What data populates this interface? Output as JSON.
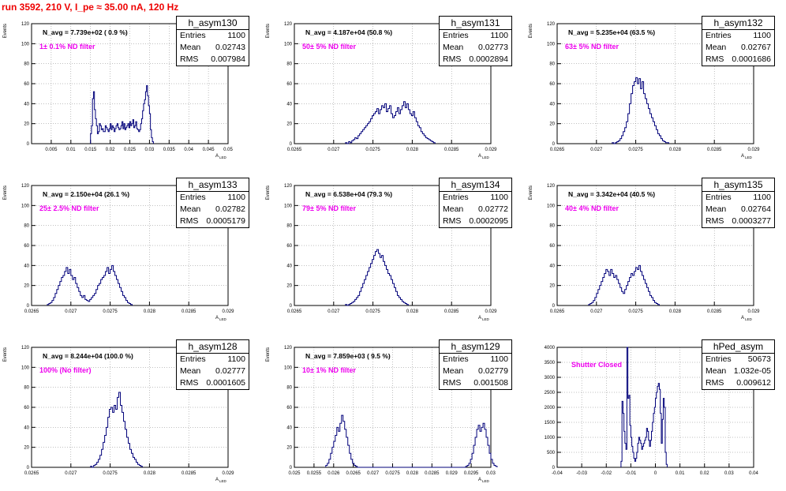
{
  "header": {
    "run_label": "run 3592,   210 V, I_pe ≈ 35.00 nA, 120 Hz"
  },
  "colors": {
    "histogram": "#00007a",
    "title": "#ee0000",
    "filter_text": "#ee00ee",
    "grid": "#808080"
  },
  "chart_data": [
    {
      "type": "histogram",
      "name": "h_asym130",
      "stats": {
        "entries": "1100",
        "mean": "0.02743",
        "rms": "0.007984"
      },
      "labels": {
        "entries": "Entries",
        "mean": "Mean",
        "rms": "RMS"
      },
      "n_avg": "N_avg = 7.739e+02 ( 0.9 %)",
      "filter_text": "1± 0.1% ND filter",
      "ylabel": "Events",
      "xlabel": "A",
      "xlim": [
        0.0,
        0.05
      ],
      "ylim": [
        0,
        120
      ],
      "xticks": [
        "0.005",
        "0.01",
        "0.015",
        "0.02",
        "0.025",
        "0.03",
        "0.035",
        "0.04",
        "0.045",
        "0.05"
      ],
      "yticks": [
        "0",
        "20",
        "40",
        "60",
        "80",
        "100",
        "120"
      ],
      "x_start": 0.015,
      "bin_width": 0.00025,
      "values": [
        10,
        18,
        45,
        52,
        34,
        25,
        18,
        10,
        12,
        20,
        18,
        14,
        15,
        12,
        12,
        18,
        16,
        14,
        12,
        15,
        20,
        14,
        18,
        16,
        12,
        15,
        18,
        20,
        16,
        14,
        15,
        18,
        22,
        15,
        20,
        14,
        16,
        18,
        20,
        16,
        22,
        18,
        20,
        24,
        16,
        18,
        22,
        15,
        14,
        12,
        14,
        20,
        25,
        33,
        40,
        44,
        52,
        58,
        48,
        38,
        30,
        14,
        6,
        2
      ]
    },
    {
      "type": "histogram",
      "name": "h_asym131",
      "stats": {
        "entries": "1100",
        "mean": "0.02773",
        "rms": "0.0002894"
      },
      "labels": {
        "entries": "Entries",
        "mean": "Mean",
        "rms": "RMS"
      },
      "n_avg": "N_avg = 4.187e+04 (50.8 %)",
      "filter_text": "50± 5% ND filter",
      "ylabel": "Events",
      "xlabel": "A",
      "xlim": [
        0.0265,
        0.029
      ],
      "ylim": [
        0,
        120
      ],
      "xticks": [
        "0.0265",
        "0.027",
        "0.0275",
        "0.028",
        "0.0285",
        "0.029"
      ],
      "yticks": [
        "0",
        "20",
        "40",
        "60",
        "80",
        "100",
        "120"
      ],
      "x_start": 0.02715,
      "bin_width": 2e-05,
      "values": [
        1,
        0,
        2,
        1,
        3,
        4,
        6,
        5,
        8,
        10,
        12,
        14,
        16,
        18,
        20,
        22,
        25,
        28,
        30,
        32,
        35,
        30,
        34,
        38,
        36,
        40,
        32,
        35,
        38,
        30,
        26,
        28,
        32,
        36,
        30,
        34,
        38,
        42,
        36,
        40,
        34,
        30,
        28,
        32,
        26,
        22,
        18,
        16,
        12,
        10,
        8,
        6,
        5,
        4,
        3,
        2,
        1
      ]
    },
    {
      "type": "histogram",
      "name": "h_asym132",
      "stats": {
        "entries": "1100",
        "mean": "0.02767",
        "rms": "0.0001686"
      },
      "labels": {
        "entries": "Entries",
        "mean": "Mean",
        "rms": "RMS"
      },
      "n_avg": "N_avg = 5.235e+04 (63.5 %)",
      "filter_text": "63± 5% ND filter",
      "ylabel": "Events",
      "xlabel": "A",
      "xlim": [
        0.0265,
        0.029
      ],
      "ylim": [
        0,
        120
      ],
      "xticks": [
        "0.0265",
        "0.027",
        "0.0275",
        "0.028",
        "0.0285",
        "0.029"
      ],
      "yticks": [
        "0",
        "20",
        "40",
        "60",
        "80",
        "100",
        "120"
      ],
      "x_start": 0.0272,
      "bin_width": 2e-05,
      "values": [
        1,
        0,
        1,
        2,
        3,
        5,
        8,
        12,
        16,
        22,
        30,
        40,
        50,
        58,
        62,
        66,
        60,
        65,
        55,
        62,
        50,
        45,
        40,
        35,
        30,
        26,
        22,
        18,
        14,
        10,
        8,
        5,
        3,
        2,
        1,
        1
      ]
    },
    {
      "type": "histogram",
      "name": "h_asym133",
      "stats": {
        "entries": "1100",
        "mean": "0.02782",
        "rms": "0.0005179"
      },
      "labels": {
        "entries": "Entries",
        "mean": "Mean",
        "rms": "RMS"
      },
      "n_avg": "N_avg = 2.150e+04 (26.1 %)",
      "filter_text": "25± 2.5% ND filter",
      "ylabel": "Events",
      "xlabel": "A",
      "xlim": [
        0.0265,
        0.029
      ],
      "ylim": [
        0,
        120
      ],
      "xticks": [
        "0.0265",
        "0.027",
        "0.0275",
        "0.028",
        "0.0285",
        "0.029"
      ],
      "yticks": [
        "0",
        "20",
        "40",
        "60",
        "80",
        "100",
        "120"
      ],
      "x_start": 0.0267,
      "bin_width": 2e-05,
      "values": [
        1,
        2,
        3,
        5,
        8,
        12,
        16,
        20,
        24,
        28,
        30,
        34,
        38,
        32,
        36,
        30,
        26,
        28,
        22,
        18,
        14,
        10,
        8,
        10,
        6,
        5,
        4,
        6,
        8,
        10,
        12,
        16,
        20,
        22,
        26,
        28,
        30,
        34,
        38,
        32,
        36,
        40,
        34,
        30,
        26,
        22,
        18,
        14,
        10,
        8,
        5,
        3,
        2,
        1
      ]
    },
    {
      "type": "histogram",
      "name": "h_asym134",
      "stats": {
        "entries": "1100",
        "mean": "0.02772",
        "rms": "0.0002095"
      },
      "labels": {
        "entries": "Entries",
        "mean": "Mean",
        "rms": "RMS"
      },
      "n_avg": "N_avg = 6.538e+04 (79.3 %)",
      "filter_text": "79± 5% ND filter",
      "ylabel": "Events",
      "xlabel": "A",
      "xlim": [
        0.0265,
        0.029
      ],
      "ylim": [
        0,
        120
      ],
      "xticks": [
        "0.0265",
        "0.027",
        "0.0275",
        "0.028",
        "0.0285",
        "0.029"
      ],
      "yticks": [
        "0",
        "20",
        "40",
        "60",
        "80",
        "100",
        "120"
      ],
      "x_start": 0.02715,
      "bin_width": 2e-05,
      "values": [
        1,
        0,
        1,
        2,
        3,
        4,
        6,
        8,
        10,
        14,
        18,
        22,
        26,
        30,
        34,
        38,
        42,
        46,
        50,
        54,
        56,
        52,
        48,
        50,
        44,
        40,
        36,
        32,
        30,
        26,
        22,
        18,
        14,
        10,
        8,
        6,
        4,
        3,
        2,
        1
      ]
    },
    {
      "type": "histogram",
      "name": "h_asym135",
      "stats": {
        "entries": "1100",
        "mean": "0.02764",
        "rms": "0.0003277"
      },
      "labels": {
        "entries": "Entries",
        "mean": "Mean",
        "rms": "RMS"
      },
      "n_avg": "N_avg = 3.342e+04 (40.5 %)",
      "filter_text": "40± 4% ND filter",
      "ylabel": "Events",
      "xlabel": "A",
      "xlim": [
        0.0265,
        0.029
      ],
      "ylim": [
        0,
        120
      ],
      "xticks": [
        "0.0265",
        "0.027",
        "0.0275",
        "0.028",
        "0.0285",
        "0.029"
      ],
      "yticks": [
        "0",
        "20",
        "40",
        "60",
        "80",
        "100",
        "120"
      ],
      "x_start": 0.0269,
      "bin_width": 2e-05,
      "values": [
        1,
        2,
        3,
        5,
        8,
        12,
        16,
        20,
        24,
        28,
        32,
        36,
        34,
        30,
        36,
        32,
        28,
        30,
        26,
        22,
        18,
        14,
        12,
        16,
        20,
        24,
        28,
        32,
        30,
        34,
        38,
        36,
        40,
        34,
        30,
        26,
        22,
        18,
        14,
        10,
        8,
        5,
        3,
        2,
        1
      ]
    },
    {
      "type": "histogram",
      "name": "h_asym128",
      "stats": {
        "entries": "1100",
        "mean": "0.02777",
        "rms": "0.0001605"
      },
      "labels": {
        "entries": "Entries",
        "mean": "Mean",
        "rms": "RMS"
      },
      "n_avg": "N_avg = 8.244e+04 (100.0 %)",
      "filter_text": "100% (No filter)",
      "ylabel": "Events",
      "xlabel": "A",
      "xlim": [
        0.0265,
        0.029
      ],
      "ylim": [
        0,
        120
      ],
      "xticks": [
        "0.0265",
        "0.027",
        "0.0275",
        "0.028",
        "0.0285",
        "0.029"
      ],
      "yticks": [
        "0",
        "20",
        "40",
        "60",
        "80",
        "100",
        "120"
      ],
      "x_start": 0.02725,
      "bin_width": 2e-05,
      "values": [
        1,
        0,
        2,
        3,
        5,
        8,
        12,
        18,
        25,
        32,
        40,
        50,
        58,
        60,
        55,
        62,
        58,
        70,
        75,
        62,
        55,
        46,
        38,
        30,
        24,
        18,
        14,
        10,
        8,
        5,
        3,
        2,
        1
      ]
    },
    {
      "type": "histogram",
      "name": "h_asym129",
      "stats": {
        "entries": "1100",
        "mean": "0.02779",
        "rms": "0.001508"
      },
      "labels": {
        "entries": "Entries",
        "mean": "Mean",
        "rms": "RMS"
      },
      "n_avg": "N_avg = 7.859e+03 ( 9.5 %)",
      "filter_text": "10± 1% ND filter",
      "ylabel": "Events",
      "xlabel": "A",
      "xlim": [
        0.025,
        0.03
      ],
      "ylim": [
        0,
        120
      ],
      "xticks": [
        "0.025",
        "0.0255",
        "0.026",
        "0.0265",
        "0.027",
        "0.0275",
        "0.028",
        "0.0285",
        "0.029",
        "0.0295",
        "0.03"
      ],
      "yticks": [
        "0",
        "20",
        "40",
        "60",
        "80",
        "100",
        "120"
      ],
      "x_start": 0.0258,
      "bin_width": 4e-05,
      "values": [
        2,
        4,
        8,
        14,
        20,
        26,
        32,
        40,
        36,
        44,
        52,
        46,
        38,
        30,
        22,
        14,
        8,
        4,
        2,
        1,
        0,
        0,
        0,
        0,
        0,
        0,
        0,
        0,
        0,
        0,
        0,
        0,
        0,
        0,
        0,
        0,
        0,
        0,
        0,
        0,
        0,
        0,
        0,
        0,
        0,
        0,
        0,
        0,
        0,
        0,
        0,
        0,
        0,
        0,
        0,
        0,
        0,
        0,
        0,
        0,
        0,
        0,
        0,
        0,
        0,
        0,
        0,
        0,
        0,
        0,
        0,
        0,
        0,
        0,
        0,
        0,
        0,
        0,
        0,
        0,
        0,
        0,
        0,
        0,
        0,
        0,
        0,
        0,
        0,
        1,
        2,
        4,
        8,
        14,
        22,
        30,
        38,
        42,
        36,
        40,
        44,
        38,
        30,
        22,
        14,
        8,
        4,
        2,
        1
      ]
    },
    {
      "type": "histogram",
      "name": "hPed_asym",
      "stats": {
        "entries": "50673",
        "mean": "1.032e-05",
        "rms": "0.009612"
      },
      "labels": {
        "entries": "Entries",
        "mean": "Mean",
        "rms": "RMS"
      },
      "n_avg": "",
      "filter_text": "Shutter Closed",
      "ylabel": "",
      "xlabel": "",
      "xlim": [
        -0.04,
        0.04
      ],
      "ylim": [
        0,
        4000
      ],
      "xticks": [
        "-0.04",
        "-0.03",
        "-0.02",
        "-0.01",
        "0",
        "0.01",
        "0.02",
        "0.03",
        "0.04"
      ],
      "yticks": [
        "0",
        "500",
        "1000",
        "1500",
        "2000",
        "2500",
        "3000",
        "3500",
        "4000"
      ],
      "x_start": -0.014,
      "bin_width": 0.0004,
      "values": [
        200,
        2200,
        1800,
        1200,
        800,
        600,
        4100,
        2300,
        2400,
        1400,
        1000,
        700,
        500,
        300,
        200,
        300,
        500,
        800,
        1000,
        900,
        800,
        600,
        700,
        800,
        900,
        1000,
        1300,
        1200,
        900,
        700,
        900,
        1200,
        1500,
        1800,
        2000,
        2300,
        2500,
        2700,
        2800,
        2600,
        1800,
        800,
        1600,
        2300,
        2000,
        500,
        100
      ]
    }
  ]
}
